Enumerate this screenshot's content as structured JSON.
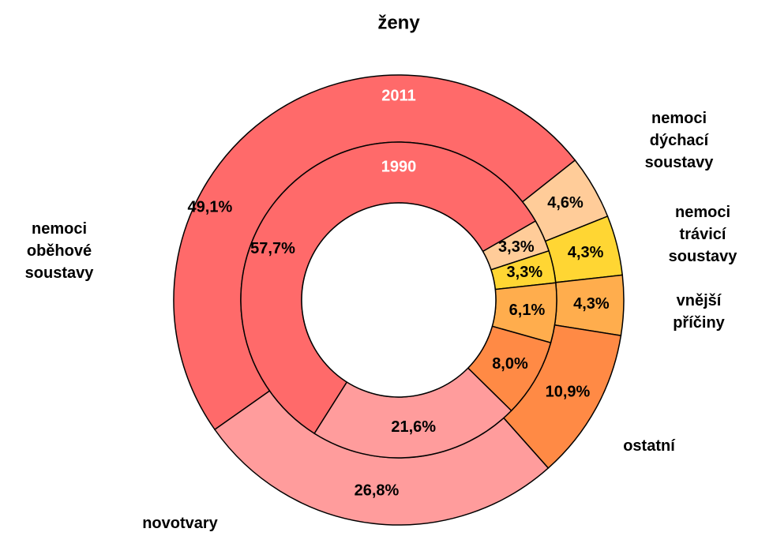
{
  "chart_data": {
    "type": "pie",
    "title": "ženy",
    "categories": [
      "nemoci oběhové soustavy",
      "nemoci dýchací soustavy",
      "nemoci trávicí soustavy",
      "vnější příčiny",
      "ostatní",
      "novotvary"
    ],
    "colors": [
      "#ff6a6a",
      "#ffcc99",
      "#ffd633",
      "#ffad4d",
      "#ff8a45",
      "#ff9c9c"
    ],
    "series": [
      {
        "name": "2011",
        "values": [
          49.1,
          4.6,
          4.3,
          4.3,
          10.9,
          26.8
        ],
        "value_labels": [
          "49,1%",
          "4,6%",
          "4,3%",
          "4,3%",
          "10,9%",
          "26,8%"
        ]
      },
      {
        "name": "1990",
        "values": [
          57.7,
          3.3,
          3.3,
          6.1,
          8.0,
          21.6
        ],
        "value_labels": [
          "57,7%",
          "3,3%",
          "3,3%",
          "6,1%",
          "8,0%",
          "21,6%"
        ]
      }
    ]
  }
}
